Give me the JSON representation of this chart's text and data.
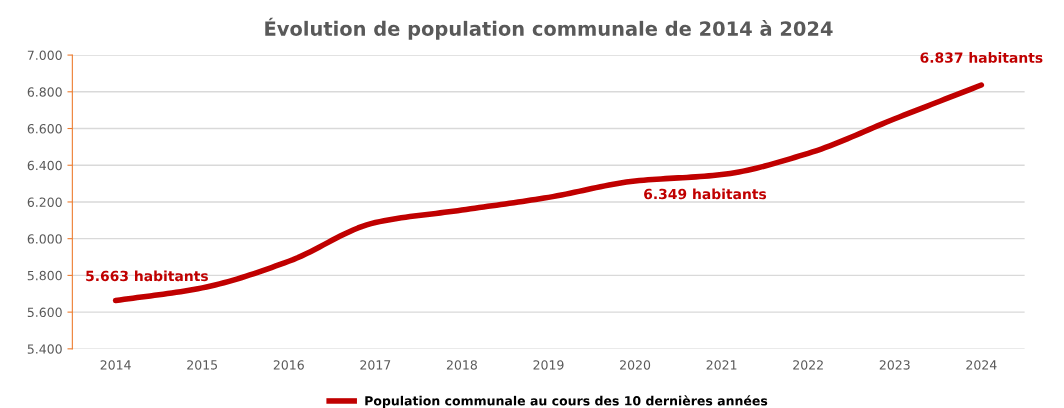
{
  "chart_data": {
    "type": "line",
    "title": "Évolution de population communale de 2014 à 2024",
    "categories": [
      "2014",
      "2015",
      "2016",
      "2017",
      "2018",
      "2019",
      "2020",
      "2021",
      "2022",
      "2023",
      "2024"
    ],
    "series": [
      {
        "name": "Population communale au cours des 10 dernières années",
        "color": "#c00000",
        "values": [
          5663,
          5732,
          5877,
          6088,
          6156,
          6225,
          6314,
          6349,
          6465,
          6653,
          6837
        ],
        "value_labels": [
          "5.663 habitants",
          null,
          null,
          null,
          null,
          null,
          null,
          "6.349 habitants",
          null,
          null,
          "6.837 habitants"
        ]
      }
    ],
    "ylim": [
      5400,
      7000
    ],
    "yticks": [
      {
        "value": 5400,
        "label": "5.400"
      },
      {
        "value": 5600,
        "label": "5.600"
      },
      {
        "value": 5800,
        "label": "5.800"
      },
      {
        "value": 6000,
        "label": "6.000"
      },
      {
        "value": 6200,
        "label": "6.200"
      },
      {
        "value": 6400,
        "label": "6.400"
      },
      {
        "value": 6600,
        "label": "6.600"
      },
      {
        "value": 6800,
        "label": "6.800"
      },
      {
        "value": 7000,
        "label": "7.000"
      }
    ],
    "grid": "y",
    "legend": "bottom",
    "marker": "none",
    "line_style": "solid"
  }
}
